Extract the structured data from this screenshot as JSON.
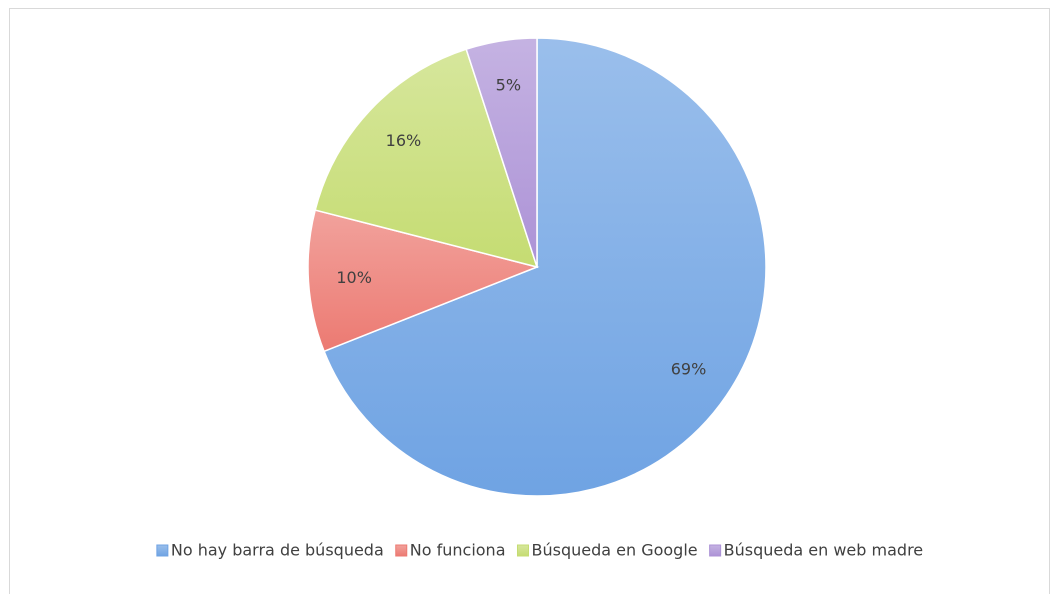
{
  "chart_data": {
    "type": "pie",
    "categories": [
      "No hay barra de búsqueda",
      "No funciona",
      "Búsqueda en Google",
      "Búsqueda en web madre"
    ],
    "values": [
      69,
      10,
      16,
      5
    ],
    "value_labels": [
      "69%",
      "10%",
      "16%",
      "5%"
    ],
    "colors": [
      "#6fa3e3",
      "#ec7a72",
      "#c5dc72",
      "#ac92d6"
    ],
    "legend": "bottom"
  }
}
